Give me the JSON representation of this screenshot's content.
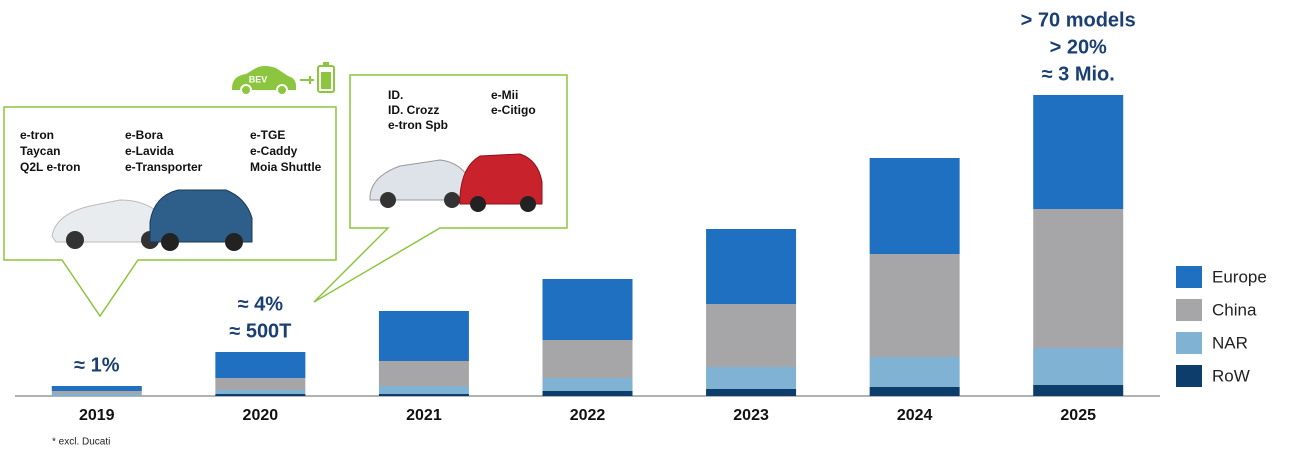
{
  "chart_data": {
    "type": "stacked-bar",
    "categories": [
      "2019",
      "2020",
      "2021",
      "2022",
      "2023",
      "2024",
      "2025"
    ],
    "series": [
      {
        "name": "RoW",
        "color": "#0c3d6b",
        "values": [
          0,
          2,
          2,
          5,
          7,
          9,
          11
        ]
      },
      {
        "name": "NAR",
        "color": "#7fb2d3",
        "values": [
          2,
          4,
          8,
          13,
          22,
          30,
          37
        ]
      },
      {
        "name": "China",
        "color": "#a6a6a8",
        "values": [
          3,
          12,
          25,
          38,
          63,
          103,
          139
        ]
      },
      {
        "name": "Europe",
        "color": "#1f70c1",
        "values": [
          5,
          26,
          50,
          61,
          75,
          96,
          114
        ]
      }
    ],
    "ylim": [
      0,
      301
    ],
    "annotations": [
      [
        "≈ 1%"
      ],
      [
        "≈ 4%",
        "≈ 500T"
      ],
      null,
      null,
      null,
      null,
      [
        "> 70 models",
        "> 20%",
        "≈ 3 Mio."
      ]
    ],
    "footnote": "* excl. Ducati",
    "bev_icon_label": "BEV",
    "callouts": [
      {
        "columns": [
          [
            "e-tron",
            "Taycan",
            "Q2L e-tron"
          ],
          [
            "e-Bora",
            "e-Lavida",
            "e-Transporter"
          ],
          [
            "e-TGE",
            "e-Caddy",
            "Moia Shuttle"
          ]
        ]
      },
      {
        "columns": [
          [
            "ID.",
            "ID. Crozz",
            "e-tron Spb"
          ],
          [
            "e-Mii",
            "e-Citigo"
          ]
        ]
      }
    ]
  }
}
